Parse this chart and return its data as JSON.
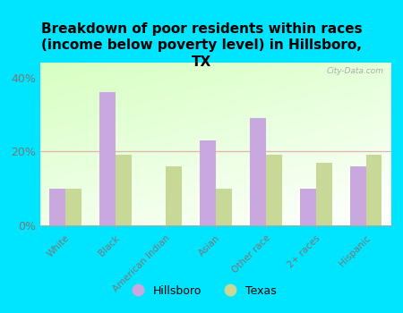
{
  "title": "Breakdown of poor residents within races\n(income below poverty level) in Hillsboro,\nTX",
  "categories": [
    "White",
    "Black",
    "American Indian",
    "Asian",
    "Other race",
    "2+ races",
    "Hispanic"
  ],
  "hillsboro": [
    10,
    36,
    0,
    23,
    29,
    10,
    16
  ],
  "texas": [
    10,
    19,
    16,
    10,
    19,
    17,
    19
  ],
  "hillsboro_color": "#c9a8e0",
  "texas_color": "#c8d896",
  "background_color": "#00e5ff",
  "ylabel_ticks": [
    0,
    20,
    40
  ],
  "ylabel_labels": [
    "0%",
    "20%",
    "40%"
  ],
  "ylim": [
    0,
    44
  ],
  "watermark": "City-Data.com",
  "legend_hillsboro": "Hillsboro",
  "legend_texas": "Texas",
  "bar_width": 0.32,
  "hline_color": "#e0a0a0",
  "tick_label_color": "#777777",
  "title_fontsize": 11
}
